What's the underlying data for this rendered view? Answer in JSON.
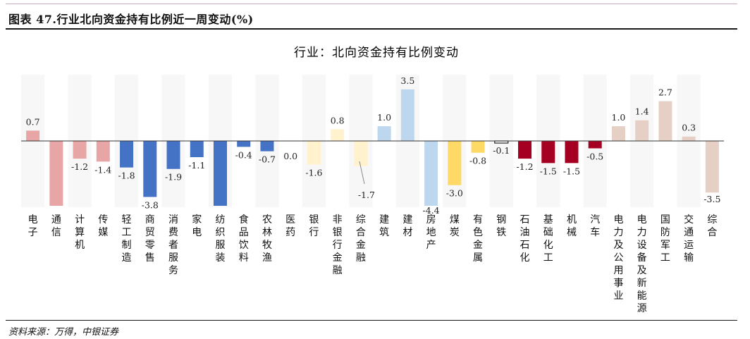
{
  "header": {
    "title": "图表 47.行业北向资金持有比例近一周变动(%)"
  },
  "footer": {
    "source": "资料来源：万得，中银证券"
  },
  "chart_data": {
    "type": "bar",
    "title": "行业：北向资金持有比例变动",
    "xlabel": "",
    "ylabel": "",
    "ylim": [
      -4.4,
      3.5
    ],
    "grid": false,
    "legend": "none",
    "categories": [
      "电子",
      "通信",
      "计算机",
      "传媒",
      "轻工制造",
      "商贸零售",
      "消费者服务",
      "家电",
      "纺织服装",
      "食品饮料",
      "农林牧渔",
      "医药",
      "银行",
      "非银行金融",
      "综合金融",
      "建筑",
      "建材",
      "房地产",
      "煤炭",
      "有色金属",
      "钢铁",
      "石油石化",
      "基础化工",
      "机械",
      "汽车",
      "电力及公用事业",
      "电力设备及新能源",
      "国防军工",
      "交通运输",
      "综合"
    ],
    "values": [
      0.7,
      -4.4,
      -1.2,
      -1.4,
      -1.8,
      -3.8,
      -1.9,
      -1.1,
      -4.4,
      -0.4,
      -0.7,
      0.0,
      -1.6,
      0.8,
      -1.7,
      1.0,
      3.5,
      -4.4,
      -3.0,
      -0.8,
      -0.1,
      -1.2,
      -1.5,
      -1.5,
      -0.5,
      1.0,
      1.4,
      2.7,
      0.3,
      -3.5
    ],
    "labels": [
      "0.7",
      "",
      "-1.2",
      "-1.4",
      "-1.8",
      "-3.8",
      "-1.9",
      "-1.1",
      "",
      "-0.4",
      "-0.7",
      "0.0",
      "-1.6",
      "0.8",
      "-1.7",
      "1.0",
      "3.5",
      "-4.4",
      "-3.0",
      "-0.8",
      "-0.1",
      "-1.2",
      "-1.5",
      "-1.5",
      "-0.5",
      "1.0",
      "1.4",
      "2.7",
      "0.3",
      "-3.5"
    ],
    "colors": [
      "#e8a5a5",
      "#e8a5a5",
      "#e8a5a5",
      "#e8a5a5",
      "#4472c4",
      "#4472c4",
      "#4472c4",
      "#4472c4",
      "#4472c4",
      "#4472c4",
      "#4472c4",
      "#4472c4",
      "#fff2cc",
      "#fff2cc",
      "#fff2cc",
      "#bdd7ee",
      "#bdd7ee",
      "#bdd7ee",
      "#ffd966",
      "#ffd966",
      "#ffffff",
      "#a50021",
      "#a50021",
      "#a50021",
      "#a50021",
      "#e6d0c6",
      "#e6d0c6",
      "#e6d0c6",
      "#e6d0c6",
      "#e6d0c6"
    ],
    "outlined": [
      20
    ]
  }
}
